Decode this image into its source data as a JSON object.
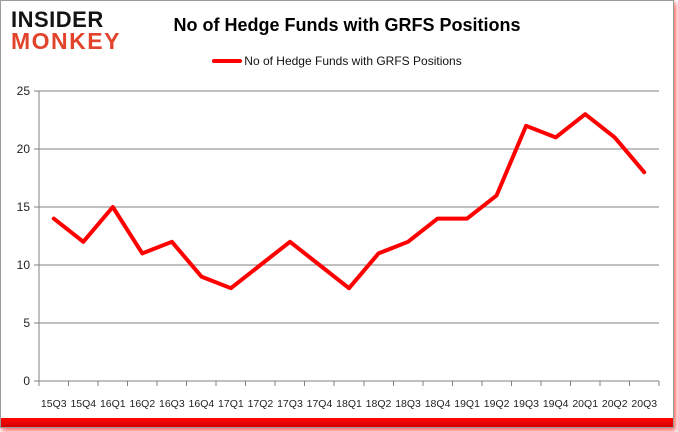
{
  "logo": {
    "line1": "INSIDER",
    "line2": "MONKEY",
    "line1_color": "#141414",
    "line2_color": "#e2432b"
  },
  "header": {
    "title": "No of Hedge Funds with GRFS Positions"
  },
  "legend": {
    "label": "No of Hedge Funds with GRFS Positions",
    "swatch_color": "#ff0000"
  },
  "chart_data": {
    "type": "line",
    "title": "No of Hedge Funds with GRFS Positions",
    "xlabel": "",
    "ylabel": "",
    "categories": [
      "15Q3",
      "15Q4",
      "16Q1",
      "16Q2",
      "16Q3",
      "16Q4",
      "17Q1",
      "17Q2",
      "17Q3",
      "17Q4",
      "18Q1",
      "18Q2",
      "18Q3",
      "18Q4",
      "19Q1",
      "19Q2",
      "19Q3",
      "19Q4",
      "20Q1",
      "20Q2",
      "20Q3"
    ],
    "series": [
      {
        "name": "No of Hedge Funds with GRFS Positions",
        "color": "#ff0000",
        "values": [
          14,
          12,
          15,
          11,
          12,
          9,
          8,
          10,
          12,
          10,
          8,
          11,
          12,
          14,
          14,
          16,
          22,
          21,
          23,
          21,
          18
        ]
      }
    ],
    "ylim": [
      0,
      25
    ],
    "yticks": [
      0,
      5,
      10,
      15,
      20,
      25
    ],
    "grid": true,
    "gridline_color": "#808080",
    "axis_color": "#808080",
    "tick_label_color": "#1f1f1f",
    "legend_position": "top-center"
  },
  "colors": {
    "accent_red": "#ff0000",
    "bottom_bar_red": "#e60000",
    "card_border": "#9b9b9b"
  }
}
